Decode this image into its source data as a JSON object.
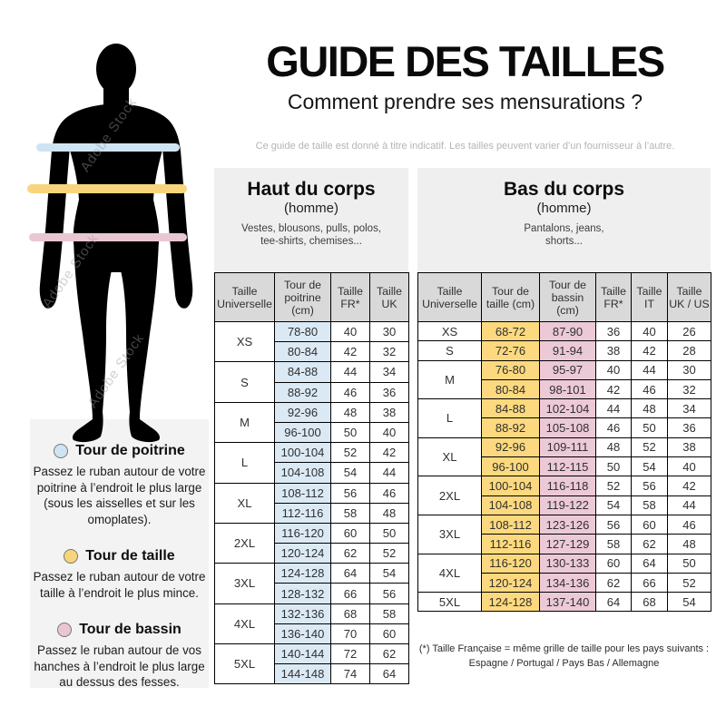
{
  "header": {
    "title": "GUIDE DES TAILLES",
    "subtitle": "Comment prendre ses mensurations ?",
    "disclaimer": "Ce guide de taille est donné à titre indicatif. Les tailles peuvent varier d’un fournisseur à l’autre."
  },
  "watermark": "Adobe Stock",
  "colors": {
    "chest-band": "#cfe4f2",
    "waist-band": "#f8d57d",
    "hips-band": "#eac5d3",
    "chest-cell": "#dbe9f5",
    "waist-cell": "#fcd97e",
    "hips-cell": "#ecc9d7",
    "header-cell": "#d9d9d9",
    "panel-bg": "#efefef",
    "legend-panel-bg": "#f3f3f3",
    "silhouette": "#000000"
  },
  "legend": {
    "items": [
      {
        "title": "Tour de poitrine",
        "body": "Passez le ruban autour de votre poitrine à l’endroit le plus large (sous les aisselles et sur les omoplates)."
      },
      {
        "title": "Tour de taille",
        "body": "Passez le ruban autour de votre taille à l’endroit le plus mince."
      },
      {
        "title": "Tour de bassin",
        "body": "Passez le ruban autour de vos hanches à l’endroit le plus large au dessus des fesses."
      }
    ]
  },
  "sections": {
    "haut": {
      "title": "Haut du corps",
      "subtitle": "(homme)",
      "description": "Vestes, blousons, pulls, polos,\ntee-shirts, chemises..."
    },
    "bas": {
      "title": "Bas du corps",
      "subtitle": "(homme)",
      "description": "Pantalons, jeans,\nshorts..."
    }
  },
  "tables": {
    "haut": {
      "columns": [
        "Taille Universelle",
        "Tour de poitrine (cm)",
        "Taille FR*",
        "Taille UK"
      ],
      "col_classes": [
        "c-chest",
        "",
        ""
      ],
      "groups": [
        {
          "size": "XS",
          "rows": [
            [
              "78-80",
              "40",
              "30"
            ],
            [
              "80-84",
              "42",
              "32"
            ]
          ]
        },
        {
          "size": "S",
          "rows": [
            [
              "84-88",
              "44",
              "34"
            ],
            [
              "88-92",
              "46",
              "36"
            ]
          ]
        },
        {
          "size": "M",
          "rows": [
            [
              "92-96",
              "48",
              "38"
            ],
            [
              "96-100",
              "50",
              "40"
            ]
          ]
        },
        {
          "size": "L",
          "rows": [
            [
              "100-104",
              "52",
              "42"
            ],
            [
              "104-108",
              "54",
              "44"
            ]
          ]
        },
        {
          "size": "XL",
          "rows": [
            [
              "108-112",
              "56",
              "46"
            ],
            [
              "112-116",
              "58",
              "48"
            ]
          ]
        },
        {
          "size": "2XL",
          "rows": [
            [
              "116-120",
              "60",
              "50"
            ],
            [
              "120-124",
              "62",
              "52"
            ]
          ]
        },
        {
          "size": "3XL",
          "rows": [
            [
              "124-128",
              "64",
              "54"
            ],
            [
              "128-132",
              "66",
              "56"
            ]
          ]
        },
        {
          "size": "4XL",
          "rows": [
            [
              "132-136",
              "68",
              "58"
            ],
            [
              "136-140",
              "70",
              "60"
            ]
          ]
        },
        {
          "size": "5XL",
          "rows": [
            [
              "140-144",
              "72",
              "62"
            ],
            [
              "144-148",
              "74",
              "64"
            ]
          ]
        }
      ]
    },
    "bas": {
      "columns": [
        "Taille Universelle",
        "Tour de taille (cm)",
        "Tour de bassin (cm)",
        "Taille FR*",
        "Taille IT",
        "Taille UK / US"
      ],
      "col_classes": [
        "c-waist",
        "c-hips",
        "",
        "",
        ""
      ],
      "groups": [
        {
          "size": "XS",
          "rows": [
            [
              "68-72",
              "87-90",
              "36",
              "40",
              "26"
            ]
          ]
        },
        {
          "size": "S",
          "rows": [
            [
              "72-76",
              "91-94",
              "38",
              "42",
              "28"
            ]
          ]
        },
        {
          "size": "M",
          "rows": [
            [
              "76-80",
              "95-97",
              "40",
              "44",
              "30"
            ],
            [
              "80-84",
              "98-101",
              "42",
              "46",
              "32"
            ]
          ]
        },
        {
          "size": "L",
          "rows": [
            [
              "84-88",
              "102-104",
              "44",
              "48",
              "34"
            ],
            [
              "88-92",
              "105-108",
              "46",
              "50",
              "36"
            ]
          ]
        },
        {
          "size": "XL",
          "rows": [
            [
              "92-96",
              "109-111",
              "48",
              "52",
              "38"
            ],
            [
              "96-100",
              "112-115",
              "50",
              "54",
              "40"
            ]
          ]
        },
        {
          "size": "2XL",
          "rows": [
            [
              "100-104",
              "116-118",
              "52",
              "56",
              "42"
            ],
            [
              "104-108",
              "119-122",
              "54",
              "58",
              "44"
            ]
          ]
        },
        {
          "size": "3XL",
          "rows": [
            [
              "108-112",
              "123-126",
              "56",
              "60",
              "46"
            ],
            [
              "112-116",
              "127-129",
              "58",
              "62",
              "48"
            ]
          ]
        },
        {
          "size": "4XL",
          "rows": [
            [
              "116-120",
              "130-133",
              "60",
              "64",
              "50"
            ],
            [
              "120-124",
              "134-136",
              "62",
              "66",
              "52"
            ]
          ]
        },
        {
          "size": "5XL",
          "rows": [
            [
              "124-128",
              "137-140",
              "64",
              "68",
              "54"
            ]
          ]
        }
      ]
    }
  },
  "footnote": {
    "line1": "(*) Taille Française = même grille de taille pour les pays suivants :",
    "line2": "Espagne / Portugal / Pays Bas / Allemagne"
  }
}
